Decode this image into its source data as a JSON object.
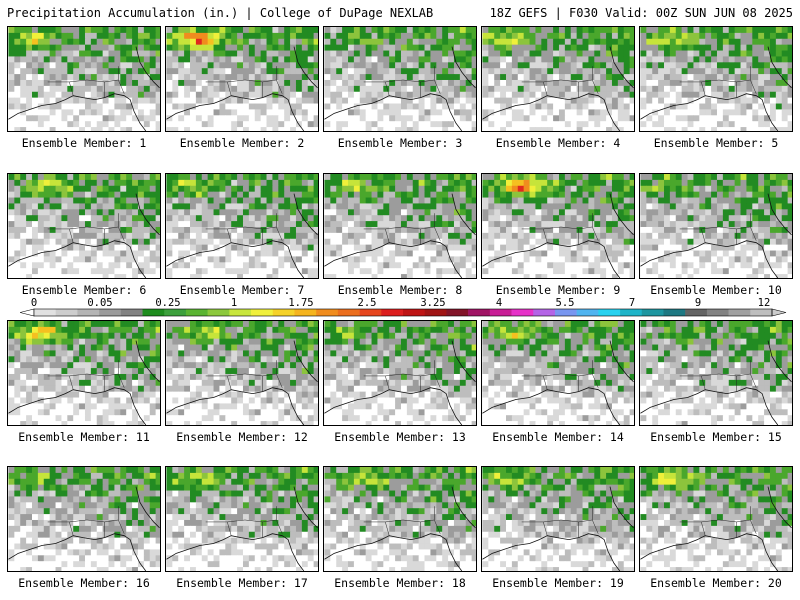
{
  "header": {
    "left": "Precipitation Accumulation (in.) | College of DuPage NEXLAB",
    "right": "18Z GEFS | F030 Valid: 00Z SUN JUN 08 2025"
  },
  "members": [
    {
      "label": "Ensemble Member: 1",
      "intensity": 0.55
    },
    {
      "label": "Ensemble Member: 2",
      "intensity": 0.95
    },
    {
      "label": "Ensemble Member: 3",
      "intensity": 0.25
    },
    {
      "label": "Ensemble Member: 4",
      "intensity": 0.55
    },
    {
      "label": "Ensemble Member: 5",
      "intensity": 0.5
    },
    {
      "label": "Ensemble Member: 6",
      "intensity": 0.5
    },
    {
      "label": "Ensemble Member: 7",
      "intensity": 0.45
    },
    {
      "label": "Ensemble Member: 8",
      "intensity": 0.45
    },
    {
      "label": "Ensemble Member: 9",
      "intensity": 0.9
    },
    {
      "label": "Ensemble Member: 10",
      "intensity": 0.35
    },
    {
      "label": "Ensemble Member: 11",
      "intensity": 0.7
    },
    {
      "label": "Ensemble Member: 12",
      "intensity": 0.45
    },
    {
      "label": "Ensemble Member: 13",
      "intensity": 0.35
    },
    {
      "label": "Ensemble Member: 14",
      "intensity": 0.5
    },
    {
      "label": "Ensemble Member: 15",
      "intensity": 0.2
    },
    {
      "label": "Ensemble Member: 16",
      "intensity": 0.35
    },
    {
      "label": "Ensemble Member: 17",
      "intensity": 0.45
    },
    {
      "label": "Ensemble Member: 18",
      "intensity": 0.45
    },
    {
      "label": "Ensemble Member: 19",
      "intensity": 0.45
    },
    {
      "label": "Ensemble Member: 20",
      "intensity": 0.6
    }
  ],
  "colorbar": {
    "tick_labels": [
      "0",
      "0.05",
      "0.25",
      "1",
      "1.75",
      "2.5",
      "3.25",
      "4",
      "5.5",
      "7",
      "9",
      "12"
    ],
    "colors": [
      "#e1e1e1",
      "#cdcdcd",
      "#b4b4b4",
      "#9b9b9b",
      "#828282",
      "#1e8c1e",
      "#3ca03c",
      "#5ab432",
      "#8cc83c",
      "#c8e63c",
      "#f0f03c",
      "#f5d228",
      "#f5b41e",
      "#f08c1e",
      "#eb6e1e",
      "#e6461e",
      "#dc1e1e",
      "#be1414",
      "#a01414",
      "#821428",
      "#a01464",
      "#c81e96",
      "#e632c8",
      "#b464e6",
      "#7896f0",
      "#50b4f0",
      "#28d2f0",
      "#1eb4c8",
      "#1e96a0",
      "#1e7882",
      "#646464",
      "#828282",
      "#a0a0a0",
      "#bebebe"
    ]
  },
  "field_colors": [
    "#ffffff",
    "#d9d9d9",
    "#bdbdbd",
    "#9c9c9c",
    "#228b22",
    "#4aa72c",
    "#8cc43c",
    "#c6e43a",
    "#f0f03a",
    "#f5c020",
    "#f08c1e",
    "#e0281e"
  ]
}
